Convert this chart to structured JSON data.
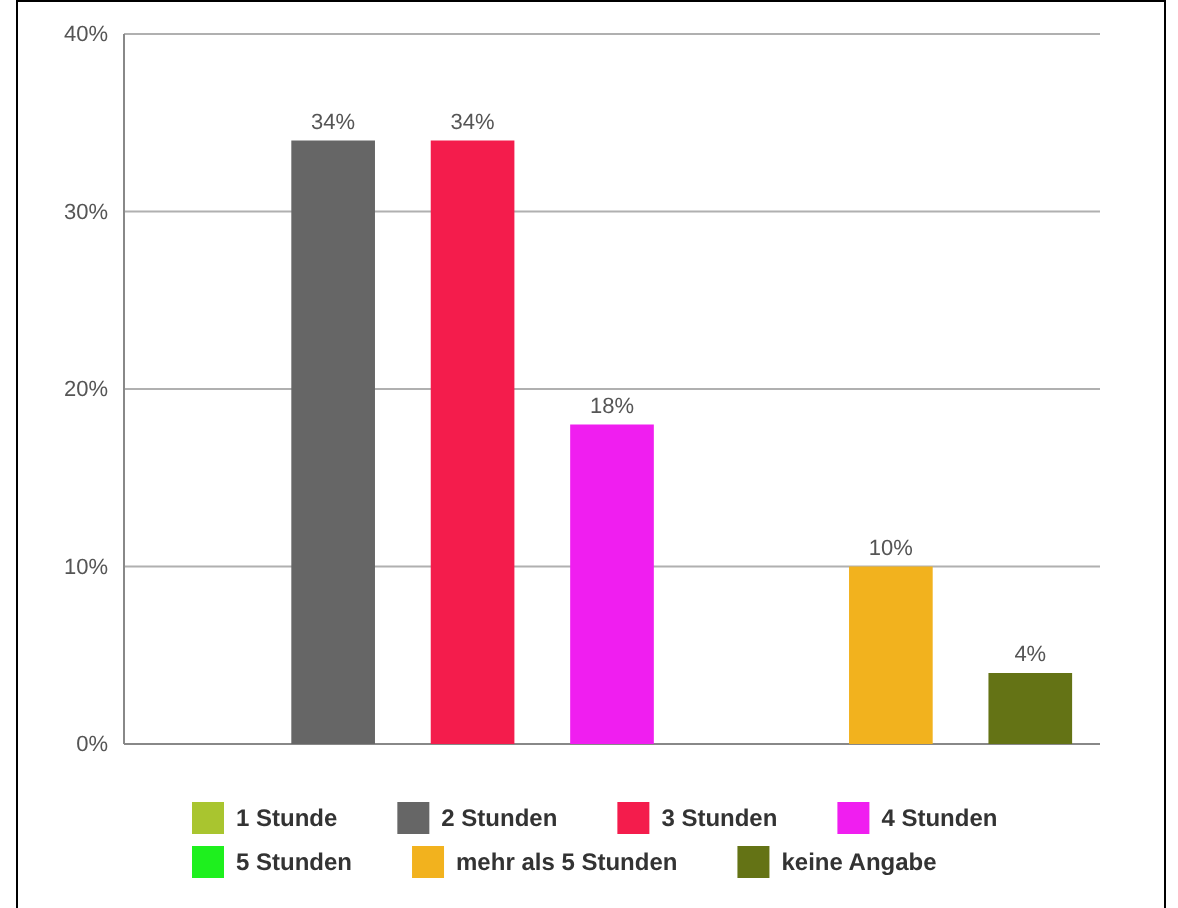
{
  "chart_data": {
    "type": "bar",
    "categories": [
      null
    ],
    "series": [
      {
        "name": "1 Stunde",
        "color": "#a9c52f",
        "values": [
          0
        ],
        "value_labels": [
          null
        ]
      },
      {
        "name": "2 Stunden",
        "color": "#666666",
        "values": [
          34
        ],
        "value_labels": [
          "34%"
        ]
      },
      {
        "name": "3 Stunden",
        "color": "#f41c4c",
        "values": [
          34
        ],
        "value_labels": [
          "34%"
        ]
      },
      {
        "name": "4 Stunden",
        "color": "#f01ef0",
        "values": [
          18
        ],
        "value_labels": [
          "18%"
        ]
      },
      {
        "name": "5 Stunden",
        "color": "#1ef01e",
        "values": [
          0
        ],
        "value_labels": [
          null
        ]
      },
      {
        "name": "mehr als 5 Stunden",
        "color": "#f2b21e",
        "values": [
          10
        ],
        "value_labels": [
          "10%"
        ]
      },
      {
        "name": "keine Angabe",
        "color": "#647315",
        "values": [
          4
        ],
        "value_labels": [
          "4%"
        ]
      }
    ],
    "ylim": [
      0,
      40
    ],
    "yticks": [
      {
        "value": 0,
        "label": "0%"
      },
      {
        "value": 10,
        "label": "10%"
      },
      {
        "value": 20,
        "label": "20%"
      },
      {
        "value": 30,
        "label": "30%"
      },
      {
        "value": 40,
        "label": "40%"
      }
    ],
    "grid": "y",
    "legend": "bottom"
  }
}
